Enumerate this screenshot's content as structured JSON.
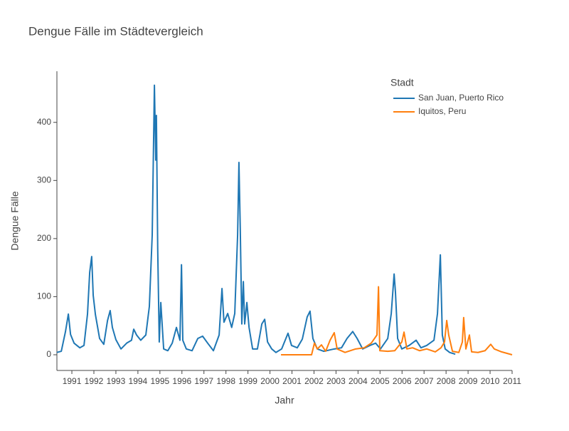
{
  "chart_data": {
    "type": "line",
    "title": "Dengue Fälle im Städtevergleich",
    "x_label": "Jahr",
    "y_label": "Dengue Fälle",
    "legend_title": "Stadt",
    "xlim": [
      1990.32,
      2011
    ],
    "xticks": [
      1991,
      1992,
      1993,
      1994,
      1995,
      1996,
      1997,
      1998,
      1999,
      2000,
      2001,
      2002,
      2003,
      2004,
      2005,
      2006,
      2007,
      2008,
      2009,
      2010,
      2011
    ],
    "ylim": [
      -27,
      488
    ],
    "yticks": [
      0,
      100,
      200,
      300,
      400
    ],
    "grid": false,
    "series": [
      {
        "name": "San Juan, Puerto Rico",
        "color": "#1f77b4",
        "x": [
          1990.32,
          1990.52,
          1990.71,
          1990.84,
          1990.94,
          1991.1,
          1991.36,
          1991.55,
          1991.71,
          1991.81,
          1991.9,
          1991.97,
          1992.07,
          1992.26,
          1992.45,
          1992.62,
          1992.74,
          1992.84,
          1993.0,
          1993.23,
          1993.49,
          1993.71,
          1993.81,
          1993.94,
          1994.13,
          1994.36,
          1994.52,
          1994.65,
          1994.75,
          1994.81,
          1994.84,
          1994.9,
          1994.97,
          1995.04,
          1995.17,
          1995.36,
          1995.56,
          1995.75,
          1995.91,
          1995.98,
          1996.04,
          1996.2,
          1996.46,
          1996.72,
          1996.94,
          1997.17,
          1997.43,
          1997.69,
          1997.82,
          1997.91,
          1998.08,
          1998.26,
          1998.4,
          1998.53,
          1998.59,
          1998.65,
          1998.72,
          1998.79,
          1998.85,
          1998.95,
          1999.05,
          1999.21,
          1999.43,
          1999.63,
          1999.76,
          1999.89,
          2000.08,
          2000.27,
          2000.53,
          2000.82,
          2000.98,
          2001.24,
          2001.47,
          2001.69,
          2001.82,
          2001.95,
          2002.15,
          2002.44,
          2002.92,
          2003.25,
          2003.5,
          2003.76,
          2003.96,
          2004.21,
          2004.54,
          2004.8,
          2005.02,
          2005.35,
          2005.51,
          2005.64,
          2005.7,
          2005.8,
          2005.99,
          2006.32,
          2006.64,
          2006.86,
          2007.12,
          2007.45,
          2007.61,
          2007.74,
          2007.83,
          2007.96,
          2008.16,
          2008.42
        ],
        "values": [
          4,
          6,
          40,
          70,
          35,
          20,
          12,
          16,
          70,
          142,
          169,
          102,
          69,
          28,
          18,
          59,
          76,
          47,
          26,
          10,
          20,
          25,
          44,
          34,
          25,
          34,
          83,
          206,
          464,
          335,
          412,
          182,
          22,
          90,
          10,
          7,
          20,
          47,
          25,
          155,
          25,
          10,
          7,
          28,
          32,
          20,
          7,
          34,
          114,
          56,
          71,
          47,
          71,
          206,
          331,
          218,
          53,
          126,
          53,
          90,
          47,
          10,
          10,
          53,
          61,
          22,
          10,
          4,
          10,
          37,
          16,
          12,
          27,
          65,
          75,
          28,
          10,
          6,
          10,
          12,
          28,
          40,
          28,
          10,
          16,
          20,
          10,
          28,
          71,
          139,
          108,
          28,
          10,
          16,
          25,
          12,
          16,
          25,
          71,
          172,
          34,
          10,
          4,
          1
        ]
      },
      {
        "name": "Iquitos, Peru",
        "color": "#ff7f0e",
        "x": [
          2000.5,
          2001.89,
          2002.02,
          2002.15,
          2002.34,
          2002.53,
          2002.73,
          2002.92,
          2003.05,
          2003.41,
          2003.89,
          2004.28,
          2004.6,
          2004.86,
          2004.93,
          2004.99,
          2005.35,
          2005.67,
          2005.99,
          2006.09,
          2006.22,
          2006.48,
          2006.8,
          2007.12,
          2007.51,
          2007.77,
          2007.93,
          2008.03,
          2008.12,
          2008.29,
          2008.58,
          2008.74,
          2008.8,
          2008.9,
          2009.06,
          2009.16,
          2009.45,
          2009.77,
          2010.03,
          2010.19,
          2010.52,
          2011.0
        ],
        "values": [
          0,
          0,
          20,
          10,
          17,
          6,
          25,
          38,
          10,
          4,
          10,
          12,
          20,
          34,
          117,
          7,
          6,
          7,
          22,
          39,
          10,
          12,
          7,
          10,
          5,
          12,
          22,
          59,
          34,
          6,
          4,
          22,
          64,
          10,
          34,
          5,
          4,
          7,
          18,
          10,
          5,
          0
        ]
      }
    ]
  }
}
